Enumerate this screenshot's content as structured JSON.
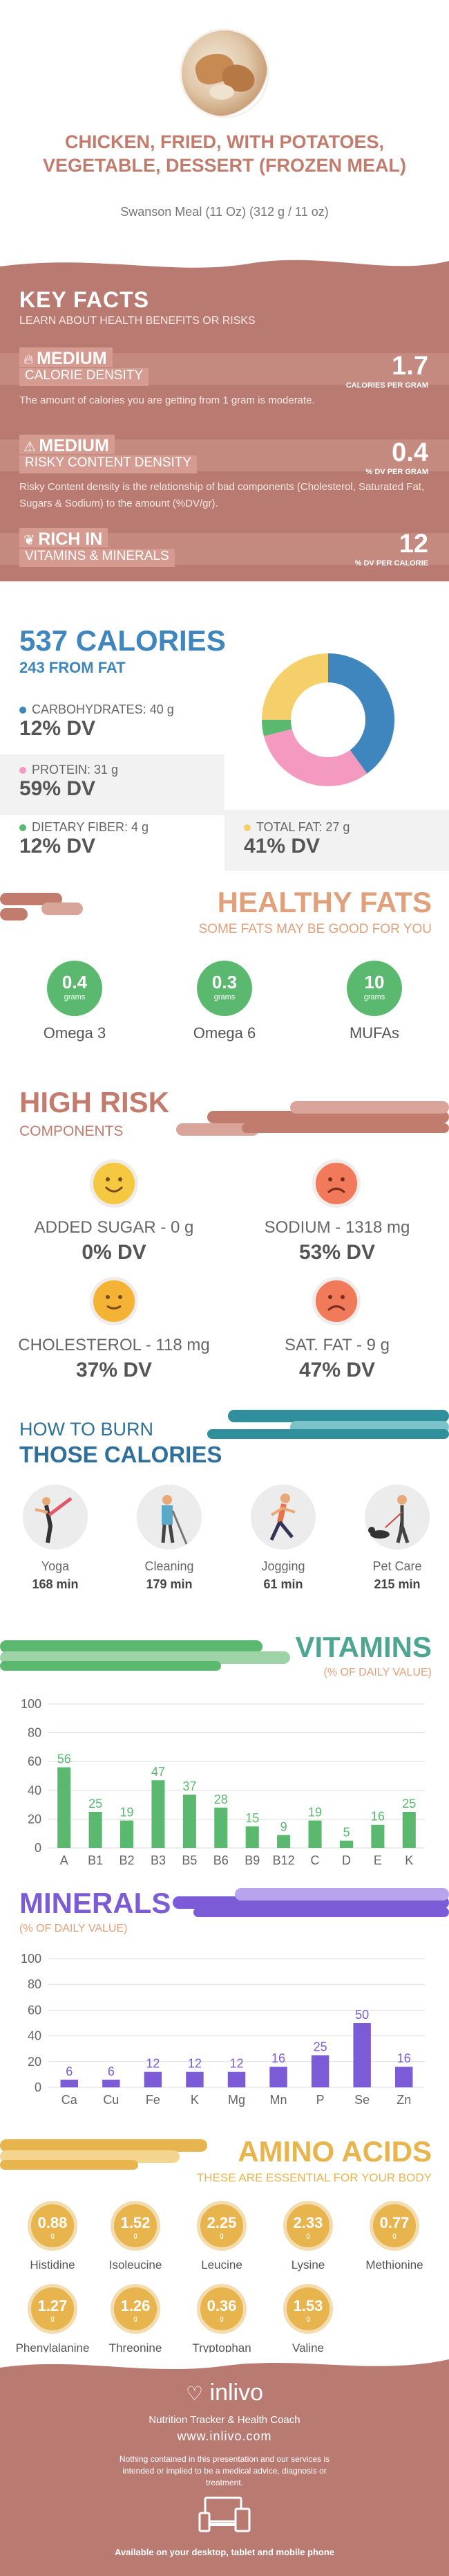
{
  "header": {
    "title": "CHICKEN, FRIED, WITH POTATOES, VEGETABLE, DESSERT (FROZEN MEAL)",
    "subtitle": "Swanson Meal (11 Oz) (312 g / 11 oz)"
  },
  "key_facts": {
    "title": "KEY FACTS",
    "subtitle": "LEARN ABOUT HEALTH BENEFITS OR RISKS",
    "items": [
      {
        "level": "MEDIUM",
        "name": "CALORIE DENSITY",
        "value": "1.7",
        "unit": "CALORIES PER GRAM",
        "desc": "The amount of calories you are getting from 1 gram is moderate."
      },
      {
        "level": "MEDIUM",
        "name": "RISKY CONTENT DENSITY",
        "value": "0.4",
        "unit": "% DV PER GRAM",
        "desc": "Risky Content density is the relationship of bad components (Cholesterol, Saturated Fat, Sugars & Sodium) to the amount (%DV/gr)."
      },
      {
        "level": "RICH  IN",
        "name": "VITAMINS & MINERALS",
        "value": "12",
        "unit": "% DV PER CALORIE",
        "desc": ""
      }
    ]
  },
  "calories": {
    "total": "537 CALORIES",
    "from_fat": "243 FROM FAT",
    "macros": [
      {
        "label": "CARBOHYDRATES: 40 g",
        "dv": "12% DV",
        "color": "#3f86bf",
        "fraction": 0.4
      },
      {
        "label": "PROTEIN: 31 g",
        "dv": "59% DV",
        "color": "#f49ac1",
        "fraction": 0.31
      },
      {
        "label": "DIETARY FIBER: 4 g",
        "dv": "12% DV",
        "color": "#5ab96e",
        "fraction": 0.04
      },
      {
        "label": "TOTAL FAT: 27 g",
        "dv": "41% DV",
        "color": "#f4cf6a",
        "fraction": 0.25
      }
    ]
  },
  "healthy_fats": {
    "title": "HEALTHY FATS",
    "subtitle": "SOME FATS MAY BE GOOD FOR YOU",
    "items": [
      {
        "value": "0.4",
        "unit": "grams",
        "name": "Omega 3"
      },
      {
        "value": "0.3",
        "unit": "grams",
        "name": "Omega 6"
      },
      {
        "value": "10",
        "unit": "grams",
        "name": "MUFAs"
      }
    ]
  },
  "high_risk": {
    "title": "HIGH RISK",
    "subtitle": "COMPONENTS",
    "items": [
      {
        "label": "ADDED SUGAR - 0 g",
        "dv": "0% DV",
        "mood": "happy",
        "color": "#f5c842"
      },
      {
        "label": "SODIUM - 1318 mg",
        "dv": "53% DV",
        "mood": "sad",
        "color": "#f07a5a"
      },
      {
        "label": "CHOLESTEROL - 118 mg",
        "dv": "37% DV",
        "mood": "smile",
        "color": "#f5b335"
      },
      {
        "label": "SAT. FAT - 9 g",
        "dv": "47% DV",
        "mood": "sad",
        "color": "#f07a5a"
      }
    ]
  },
  "burn": {
    "title_line1": "HOW TO BURN",
    "title_line2": "THOSE CALORIES",
    "items": [
      {
        "name": "Yoga",
        "minutes": "168 min",
        "icon": "yoga-icon"
      },
      {
        "name": "Cleaning",
        "minutes": "179 min",
        "icon": "cleaning-icon"
      },
      {
        "name": "Jogging",
        "minutes": "61 min",
        "icon": "jogging-icon"
      },
      {
        "name": "Pet Care",
        "minutes": "215 min",
        "icon": "pet-care-icon"
      }
    ]
  },
  "vitamins": {
    "title": "VITAMINS",
    "subtitle": "(% OF DAILY VALUE)",
    "color": "#5ab96e"
  },
  "minerals": {
    "title": "MINERALS",
    "subtitle": "(% OF DAILY VALUE)",
    "color": "#7c5cd6"
  },
  "chart_data": [
    {
      "type": "bar",
      "title": "VITAMINS",
      "categories": [
        "A",
        "B1",
        "B2",
        "B3",
        "B5",
        "B6",
        "B9",
        "B12",
        "C",
        "D",
        "E",
        "K"
      ],
      "values": [
        56,
        25,
        19,
        47,
        37,
        28,
        15,
        9,
        19,
        5,
        16,
        25
      ],
      "ylim": [
        0,
        100
      ],
      "yticks": [
        0,
        20,
        40,
        60,
        80,
        100
      ]
    },
    {
      "type": "bar",
      "title": "MINERALS",
      "categories": [
        "Ca",
        "Cu",
        "Fe",
        "K",
        "Mg",
        "Mn",
        "P",
        "Se",
        "Zn"
      ],
      "values": [
        6,
        6,
        12,
        12,
        12,
        16,
        25,
        50,
        16
      ],
      "ylim": [
        0,
        100
      ],
      "yticks": [
        0,
        20,
        40,
        60,
        80,
        100
      ]
    }
  ],
  "amino": {
    "title": "AMINO ACIDS",
    "subtitle": "THESE ARE ESSENTIAL FOR YOUR BODY",
    "items": [
      {
        "value": "0.88",
        "unit": "g",
        "name": "Histidine"
      },
      {
        "value": "1.52",
        "unit": "g",
        "name": "Isoleucine"
      },
      {
        "value": "2.25",
        "unit": "g",
        "name": "Leucine"
      },
      {
        "value": "2.33",
        "unit": "g",
        "name": "Lysine"
      },
      {
        "value": "0.77",
        "unit": "g",
        "name": "Methionine"
      },
      {
        "value": "1.27",
        "unit": "g",
        "name": "Phenylalanine"
      },
      {
        "value": "1.26",
        "unit": "g",
        "name": "Threonine"
      },
      {
        "value": "0.36",
        "unit": "g",
        "name": "Tryptophan"
      },
      {
        "value": "1.53",
        "unit": "g",
        "name": "Valine"
      }
    ]
  },
  "footer": {
    "brand": "inlivo",
    "tagline": "Nutrition Tracker & Health Coach",
    "url": "www.inlivo.com",
    "disclaimer": "Nothing contained in this presentation and our services is intended or implied to be a medical advice, diagnosis or treatment.",
    "devices": "Available on your desktop, tablet and mobile phone"
  }
}
